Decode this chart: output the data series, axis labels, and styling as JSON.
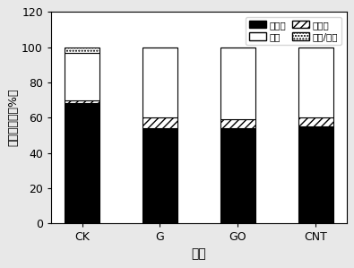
{
  "categories": [
    "CK",
    "G",
    "GO",
    "CNT"
  ],
  "食细菌": [
    68,
    54,
    54,
    55
  ],
  "食真菌": [
    2,
    6,
    5,
    5
  ],
  "植食": [
    27,
    40,
    41,
    40
  ],
  "捕食/杂食": [
    3,
    0,
    0,
    0
  ],
  "xlabel": "处理",
  "ylabel": "类群组成比（%）",
  "ylim": [
    0,
    120
  ],
  "yticks": [
    0,
    20,
    40,
    60,
    80,
    100,
    120
  ],
  "bar_width": 0.45,
  "background_color": "#e8e8e8",
  "plot_background": "#ffffff",
  "legend_labels": [
    "食细菌",
    "植食",
    "食真菌",
    "捕食/杂食"
  ]
}
